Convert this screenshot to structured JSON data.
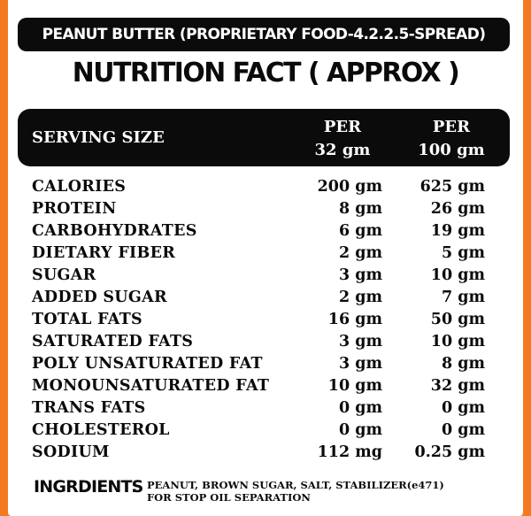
{
  "product_title": "PEANUT BUTTER (PROPRIETARY FOOD-4.2.2.5-SPREAD)",
  "heading": "NUTRITION FACT ( APPROX )",
  "header": {
    "serving_label": "SERVING SIZE",
    "col1": {
      "line1": "PER",
      "line2": "32 gm"
    },
    "col2": {
      "line1": "PER",
      "line2": "100 gm"
    }
  },
  "nutrients": [
    {
      "name": "CALORIES",
      "per32": "200 gm",
      "per100": "625 gm"
    },
    {
      "name": "PROTEIN",
      "per32": "8 gm",
      "per100": "26 gm"
    },
    {
      "name": "CARBOHYDRATES",
      "per32": "6 gm",
      "per100": "19 gm"
    },
    {
      "name": "DIETARY FIBER",
      "per32": "2 gm",
      "per100": "5 gm"
    },
    {
      "name": "SUGAR",
      "per32": "3 gm",
      "per100": "10 gm"
    },
    {
      "name": "ADDED SUGAR",
      "per32": "2 gm",
      "per100": "7 gm"
    },
    {
      "name": "TOTAL FATS",
      "per32": "16 gm",
      "per100": "50 gm"
    },
    {
      "name": "SATURATED FATS",
      "per32": "3 gm",
      "per100": "10 gm"
    },
    {
      "name": "POLY UNSATURATED FAT",
      "per32": "3 gm",
      "per100": "8 gm"
    },
    {
      "name": "MONOUNSATURATED FAT",
      "per32": "10 gm",
      "per100": "32 gm"
    },
    {
      "name": "TRANS FATS",
      "per32": "0 gm",
      "per100": "0 gm"
    },
    {
      "name": "CHOLESTEROL",
      "per32": "0 gm",
      "per100": "0 gm"
    },
    {
      "name": "SODIUM",
      "per32": "112 mg",
      "per100": "0.25 gm"
    }
  ],
  "ingredients": {
    "label": "INGRDIENTS",
    "colon": ":",
    "line1": "PEANUT, BROWN SUGAR, SALT, STABILIZER(e471)",
    "line2": "FOR STOP OIL SEPARATION"
  },
  "colors": {
    "border": "#f47a20",
    "bar": "#0b0b0b",
    "background": "#ffffff"
  }
}
